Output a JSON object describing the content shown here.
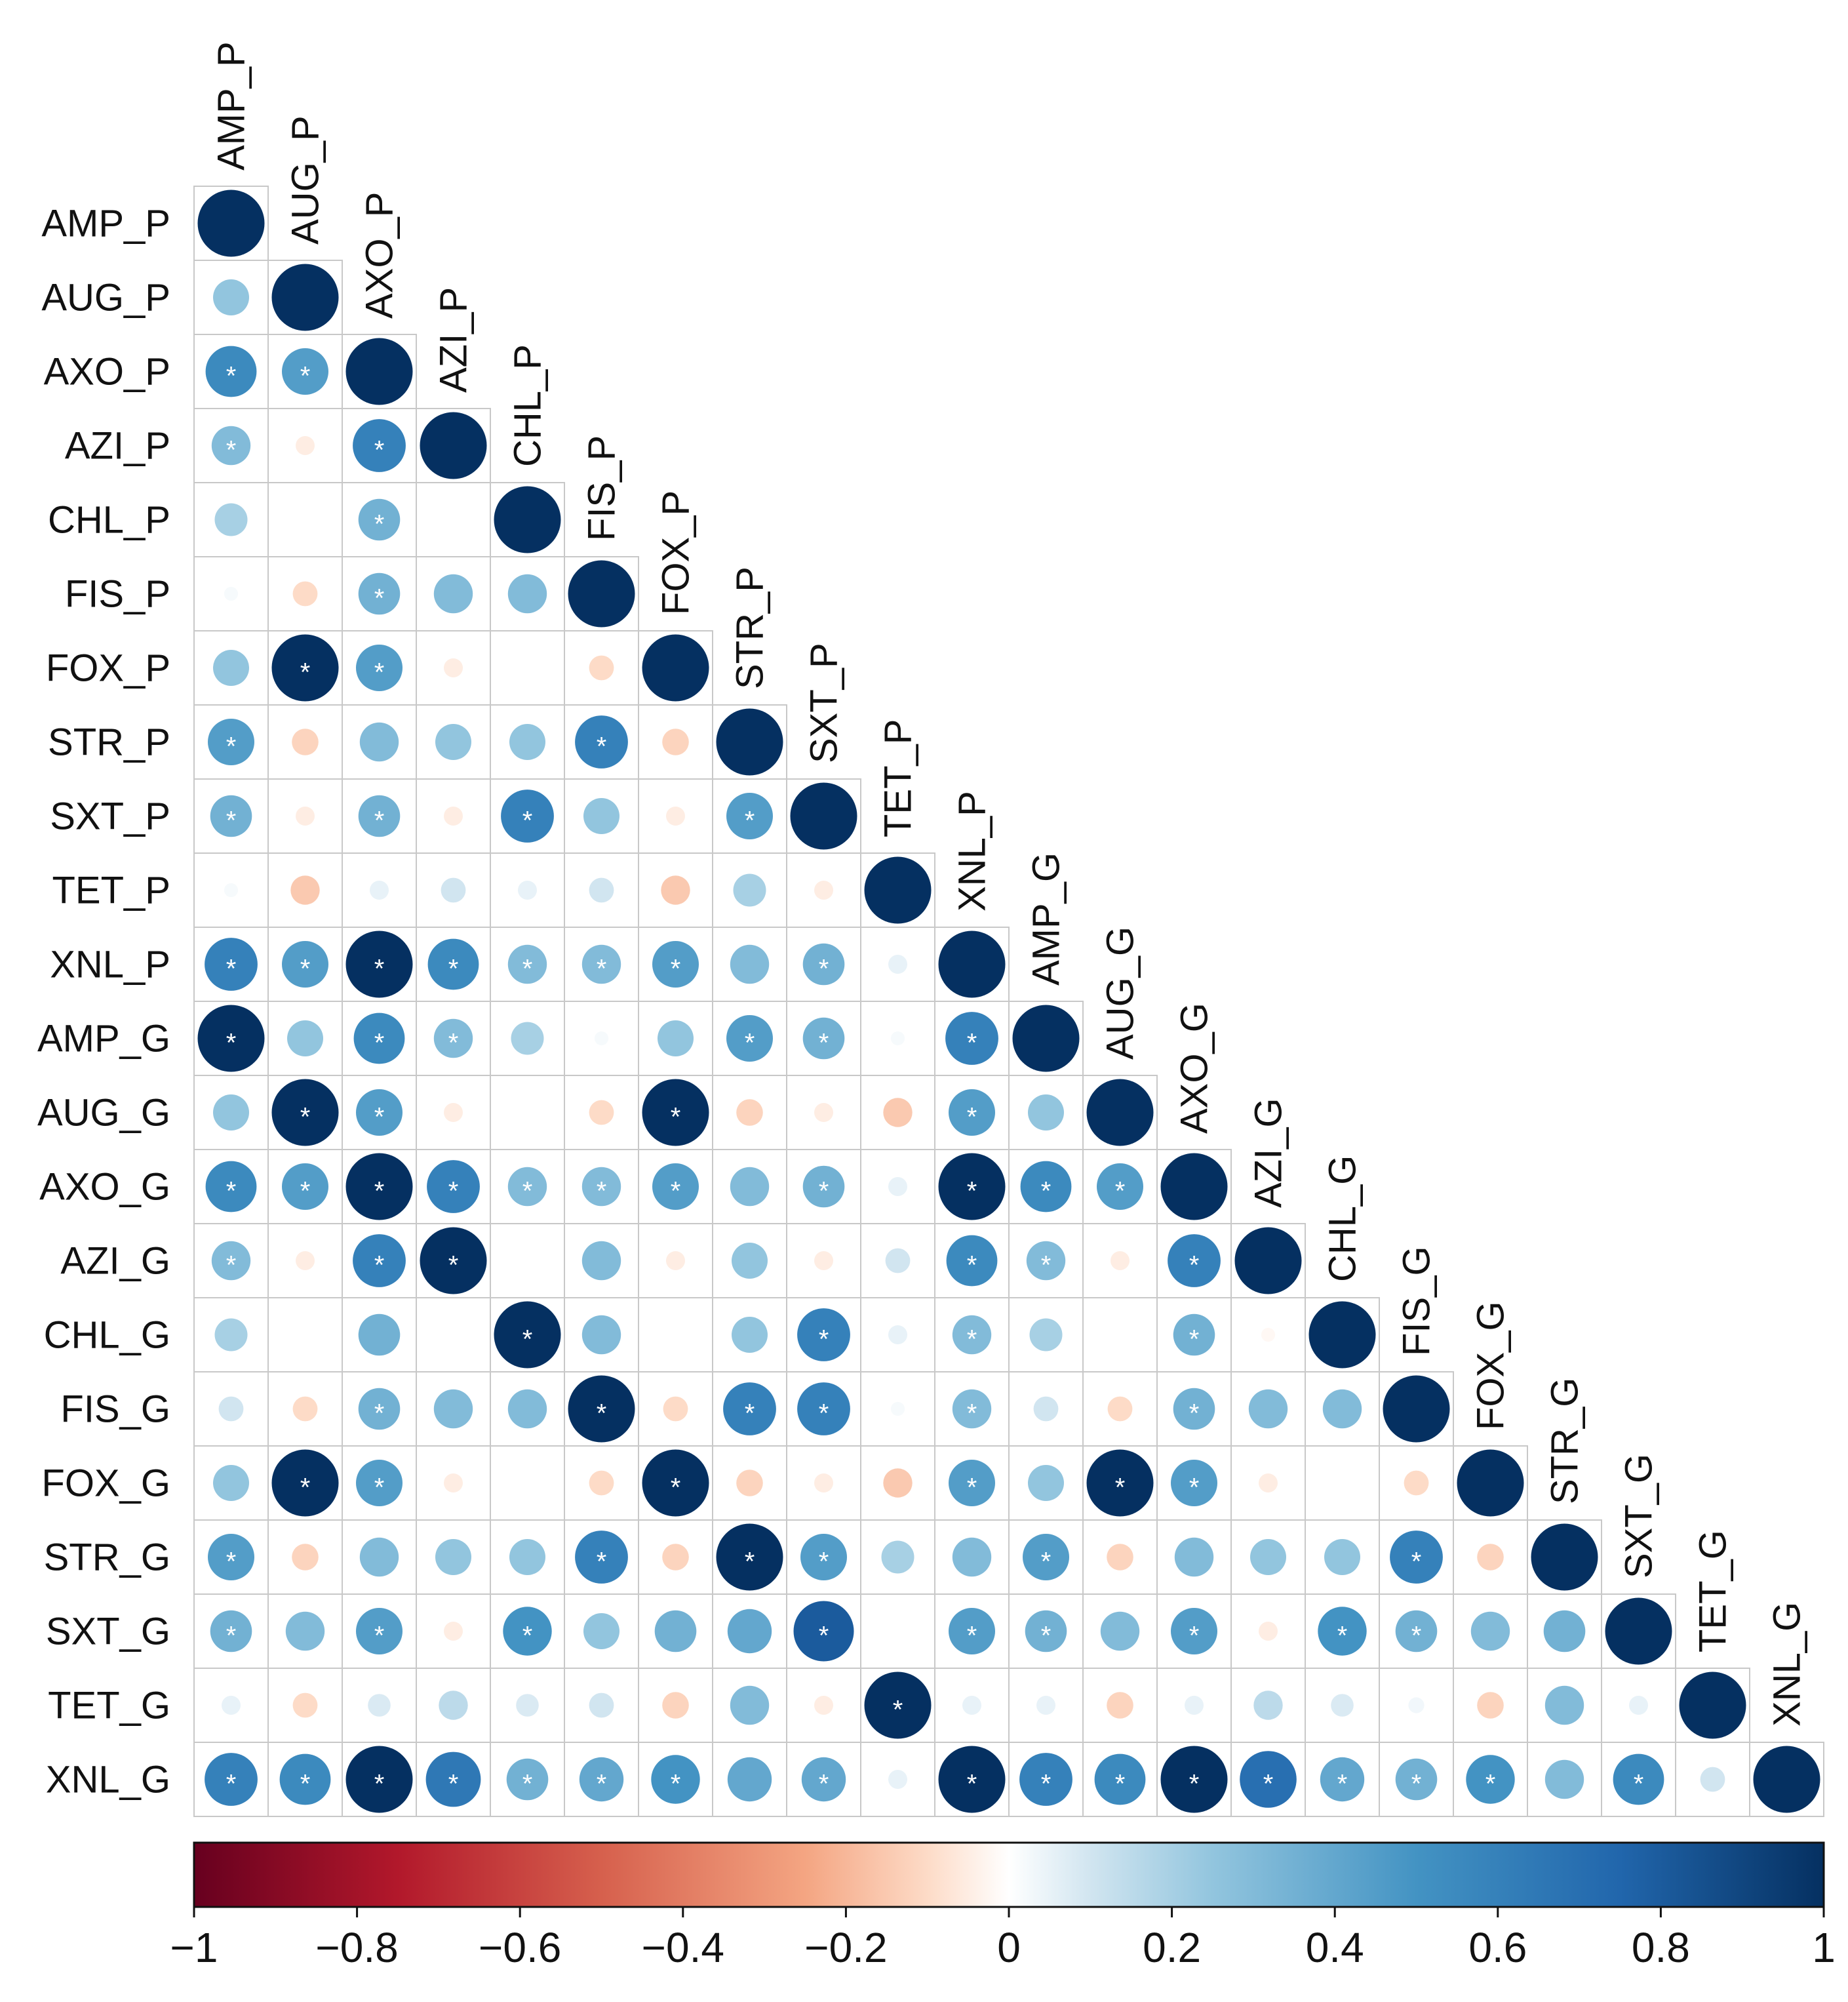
{
  "chart_data": {
    "type": "heatmap",
    "subtype": "correlation matrix (lower triangle, circle glyphs)",
    "title": "",
    "labels": [
      "AMP_P",
      "AUG_P",
      "AXO_P",
      "AZI_P",
      "CHL_P",
      "FIS_P",
      "FOX_P",
      "STR_P",
      "SXT_P",
      "TET_P",
      "XNL_P",
      "AMP_G",
      "AUG_G",
      "AXO_G",
      "AZI_G",
      "CHL_G",
      "FIS_G",
      "FOX_G",
      "STR_G",
      "SXT_G",
      "TET_G",
      "XNL_G"
    ],
    "values": [
      [
        1
      ],
      [
        0.25,
        1
      ],
      [
        0.55,
        0.45,
        1
      ],
      [
        0.3,
        -0.05,
        0.6,
        1
      ],
      [
        0.2,
        0,
        0.35,
        0,
        1
      ],
      [
        0.02,
        -0.1,
        0.35,
        0.3,
        0.3,
        1
      ],
      [
        0.25,
        1,
        0.45,
        -0.05,
        0,
        -0.1,
        1
      ],
      [
        0.45,
        -0.12,
        0.3,
        0.25,
        0.25,
        0.6,
        -0.12,
        1
      ],
      [
        0.35,
        -0.05,
        0.35,
        -0.05,
        0.6,
        0.25,
        -0.05,
        0.45,
        1
      ],
      [
        0.02,
        -0.15,
        0.05,
        0.1,
        0.05,
        0.1,
        -0.15,
        0.2,
        -0.05,
        1
      ],
      [
        0.6,
        0.45,
        1,
        0.55,
        0.3,
        0.3,
        0.45,
        0.3,
        0.35,
        0.05,
        1
      ],
      [
        1,
        0.25,
        0.55,
        0.3,
        0.2,
        0.02,
        0.25,
        0.45,
        0.35,
        0.02,
        0.6,
        1
      ],
      [
        0.25,
        1,
        0.45,
        -0.05,
        0,
        -0.1,
        1,
        -0.12,
        -0.05,
        -0.15,
        0.45,
        0.25,
        1
      ],
      [
        0.55,
        0.45,
        1,
        0.6,
        0.3,
        0.3,
        0.45,
        0.3,
        0.35,
        0.05,
        1,
        0.55,
        0.45,
        1
      ],
      [
        0.3,
        -0.05,
        0.6,
        1,
        0,
        0.3,
        -0.05,
        0.25,
        -0.05,
        0.1,
        0.55,
        0.3,
        -0.05,
        0.6,
        1
      ],
      [
        0.2,
        0,
        0.35,
        0,
        1,
        0.3,
        0,
        0.25,
        0.6,
        0.05,
        0.3,
        0.2,
        0,
        0.35,
        -0.02,
        1
      ],
      [
        0.1,
        -0.1,
        0.35,
        0.3,
        0.3,
        1,
        -0.1,
        0.6,
        0.6,
        0.02,
        0.3,
        0.1,
        -0.1,
        0.35,
        0.3,
        0.3,
        1
      ],
      [
        0.25,
        1,
        0.45,
        -0.05,
        0,
        -0.1,
        1,
        -0.12,
        -0.05,
        -0.15,
        0.45,
        0.25,
        1,
        0.45,
        -0.05,
        0,
        -0.1,
        1
      ],
      [
        0.45,
        -0.12,
        0.3,
        0.25,
        0.25,
        0.6,
        -0.12,
        1,
        0.45,
        0.2,
        0.3,
        0.45,
        -0.12,
        0.3,
        0.25,
        0.25,
        0.6,
        -0.12,
        1
      ],
      [
        0.35,
        0.3,
        0.45,
        -0.05,
        0.5,
        0.25,
        0.35,
        0.4,
        0.8,
        0,
        0.45,
        0.35,
        0.3,
        0.45,
        -0.05,
        0.5,
        0.35,
        0.3,
        0.35,
        1
      ],
      [
        0.05,
        -0.1,
        0.08,
        0.15,
        0.08,
        0.1,
        -0.12,
        0.3,
        -0.05,
        1,
        0.05,
        0.05,
        -0.12,
        0.05,
        0.15,
        0.08,
        0.03,
        -0.12,
        0.3,
        0.05,
        1
      ],
      [
        0.6,
        0.55,
        1,
        0.65,
        0.35,
        0.4,
        0.5,
        0.4,
        0.4,
        0.05,
        1,
        0.6,
        0.55,
        1,
        0.7,
        0.4,
        0.35,
        0.5,
        0.3,
        0.55,
        0.1,
        1
      ]
    ],
    "significance_marker": "*",
    "significant": [
      [],
      [],
      [
        0,
        1
      ],
      [
        0,
        2
      ],
      [
        2
      ],
      [
        2
      ],
      [
        1,
        2
      ],
      [
        0,
        5
      ],
      [
        0,
        2,
        4,
        7
      ],
      [],
      [
        0,
        1,
        2,
        3,
        4,
        5,
        6,
        8
      ],
      [
        0,
        2,
        3,
        7,
        8,
        10
      ],
      [
        1,
        2,
        6,
        10
      ],
      [
        0,
        1,
        2,
        3,
        4,
        5,
        6,
        8,
        10,
        11,
        12
      ],
      [
        0,
        2,
        3,
        10,
        11,
        13
      ],
      [
        4,
        8,
        10,
        13
      ],
      [
        2,
        5,
        7,
        8,
        10,
        13
      ],
      [
        1,
        2,
        6,
        10,
        12,
        13
      ],
      [
        0,
        5,
        7,
        8,
        11,
        16
      ],
      [
        0,
        2,
        4,
        8,
        10,
        11,
        13,
        15,
        16
      ],
      [
        9
      ],
      [
        0,
        1,
        2,
        3,
        4,
        5,
        6,
        8,
        10,
        11,
        12,
        13,
        14,
        15,
        16,
        17,
        19
      ]
    ],
    "colorbar": {
      "min": -1,
      "max": 1,
      "tick_values": [
        -1,
        -0.8,
        -0.6,
        -0.4,
        -0.2,
        0,
        0.2,
        0.4,
        0.6,
        0.8,
        1
      ],
      "tick_labels": [
        "−1",
        "−0.8",
        "−0.6",
        "−0.4",
        "−0.2",
        "0",
        "0.2",
        "0.4",
        "0.6",
        "0.8",
        "1"
      ],
      "stops": [
        {
          "v": -1,
          "color": "#67001f"
        },
        {
          "v": -0.75,
          "color": "#b2182b"
        },
        {
          "v": -0.5,
          "color": "#d6604d"
        },
        {
          "v": -0.25,
          "color": "#f4a582"
        },
        {
          "v": -0.1,
          "color": "#fddbc7"
        },
        {
          "v": 0,
          "color": "#ffffff"
        },
        {
          "v": 0.1,
          "color": "#d1e5f0"
        },
        {
          "v": 0.25,
          "color": "#92c5de"
        },
        {
          "v": 0.5,
          "color": "#4393c3"
        },
        {
          "v": 0.75,
          "color": "#2166ac"
        },
        {
          "v": 1,
          "color": "#053061"
        }
      ]
    },
    "grid": true,
    "legend": "colorbar bottom"
  }
}
